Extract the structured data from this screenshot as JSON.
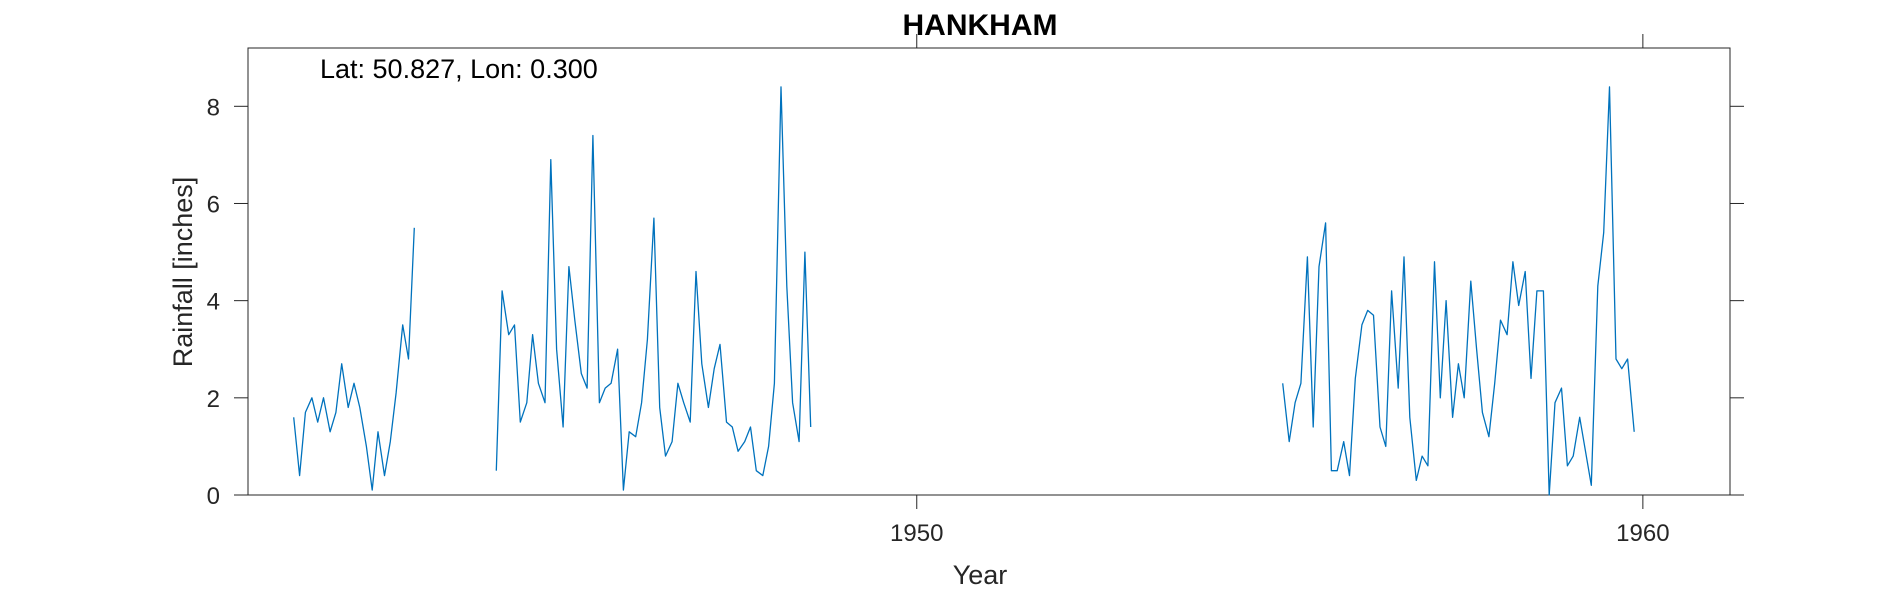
{
  "chart_data": {
    "type": "line",
    "title": "HANKHAM",
    "xlabel": "Year",
    "ylabel": "Rainfall [inches]",
    "annotation": "Lat: 50.827, Lon: 0.300",
    "xlim": [
      1940.79,
      1961.2
    ],
    "ylim": [
      0,
      9.2
    ],
    "xticks": [
      1950,
      1960
    ],
    "yticks": [
      0,
      2,
      4,
      6,
      8
    ],
    "grid": false,
    "line_color": "#0072BD",
    "series": [
      {
        "segments": [
          {
            "x": [
              1941.42,
              1941.5,
              1941.58,
              1941.67,
              1941.75,
              1941.83,
              1941.92,
              1942.0,
              1942.08,
              1942.17,
              1942.25,
              1942.33,
              1942.42,
              1942.5,
              1942.58,
              1942.67,
              1942.75,
              1942.83,
              1942.92,
              1943.0,
              1943.08,
              1943.17,
              1943.25,
              1943.33
            ],
            "y": [
              1.6,
              0.4,
              1.7,
              2.0,
              1.5,
              2.0,
              1.3,
              1.7,
              2.7,
              1.8,
              2.3,
              1.8,
              1.0,
              0.1,
              1.3,
              0.4,
              1.1,
              2.1,
              3.5,
              2.8,
              5.5,
              null,
              null,
              null
            ]
          },
          {
            "x": [
              1944.21,
              1944.29,
              1944.38,
              1944.46,
              1944.54,
              1944.63,
              1944.71,
              1944.79,
              1944.88,
              1944.96,
              1945.04,
              1945.13,
              1945.21,
              1945.29,
              1945.38,
              1945.46,
              1945.54,
              1945.63,
              1945.71,
              1945.79,
              1945.88,
              1945.96,
              1946.04,
              1946.13,
              1946.21,
              1946.29,
              1946.38,
              1946.46,
              1946.54,
              1946.63,
              1946.71,
              1946.79,
              1946.88,
              1946.96,
              1947.04,
              1947.13,
              1947.21,
              1947.29,
              1947.38,
              1947.46,
              1947.54,
              1947.63,
              1947.71,
              1947.79,
              1947.88,
              1947.96,
              1948.04,
              1948.13,
              1948.21,
              1948.29,
              1948.38,
              1948.46,
              1948.54,
              1948.63,
              1948.71,
              1948.79,
              1948.88,
              1948.96,
              1949.04,
              1949.13,
              1949.21,
              1949.29,
              1949.38,
              1949.46,
              1949.54
            ],
            "y": [
              0.5,
              4.2,
              3.3,
              3.5,
              1.5,
              1.9,
              3.3,
              2.3,
              1.9,
              6.9,
              3.0,
              1.4,
              4.7,
              3.6,
              2.5,
              2.2,
              7.4,
              1.9,
              2.2,
              2.3,
              3.0,
              0.1,
              1.3,
              1.2,
              1.9,
              3.2,
              5.7,
              1.8,
              0.8,
              1.1,
              2.3,
              1.9,
              1.5,
              4.6,
              2.7,
              1.8,
              2.6,
              3.1,
              1.5,
              1.4,
              0.9,
              1.1,
              1.4,
              0.5,
              0.4,
              1.0,
              2.3,
              8.4,
              4.3,
              1.9,
              1.1,
              5.0,
              1.4,
              null,
              null,
              null,
              null,
              null,
              null,
              null,
              null,
              null,
              null,
              null,
              null
            ]
          },
          {
            "x": [
              1955.04,
              1955.13,
              1955.21,
              1955.29,
              1955.38,
              1955.46,
              1955.54,
              1955.63,
              1955.71,
              1955.79,
              1955.88,
              1955.96,
              1956.04,
              1956.13,
              1956.21,
              1956.29,
              1956.38,
              1956.46,
              1956.54,
              1956.63,
              1956.71,
              1956.79,
              1956.88,
              1956.96,
              1957.04,
              1957.13,
              1957.21,
              1957.29,
              1957.38,
              1957.46,
              1957.54,
              1957.63,
              1957.71,
              1957.79,
              1957.88,
              1957.96,
              1958.04,
              1958.13,
              1958.21,
              1958.29,
              1958.38,
              1958.46,
              1958.54,
              1958.63,
              1958.71,
              1958.79,
              1958.88,
              1958.96,
              1959.04,
              1959.13,
              1959.21,
              1959.29,
              1959.38,
              1959.46,
              1959.54,
              1959.63,
              1959.71,
              1959.79,
              1959.88
            ],
            "y": [
              2.3,
              1.1,
              1.9,
              2.3,
              4.9,
              1.4,
              4.7,
              5.6,
              0.5,
              0.5,
              1.1,
              0.4,
              2.4,
              3.5,
              3.8,
              3.7,
              1.4,
              1.0,
              4.2,
              2.2,
              4.9,
              1.6,
              0.3,
              0.8,
              0.6,
              4.8,
              2.0,
              4.0,
              1.6,
              2.7,
              2.0,
              4.4,
              3.0,
              1.7,
              1.2,
              2.3,
              3.6,
              3.3,
              4.8,
              3.9,
              4.6,
              2.4,
              4.2,
              4.2,
              0.0,
              1.9,
              2.2,
              0.6,
              0.8,
              1.6,
              0.9,
              0.2,
              4.3,
              5.4,
              8.4,
              2.8,
              2.6,
              2.8,
              1.3
            ]
          }
        ]
      }
    ]
  }
}
